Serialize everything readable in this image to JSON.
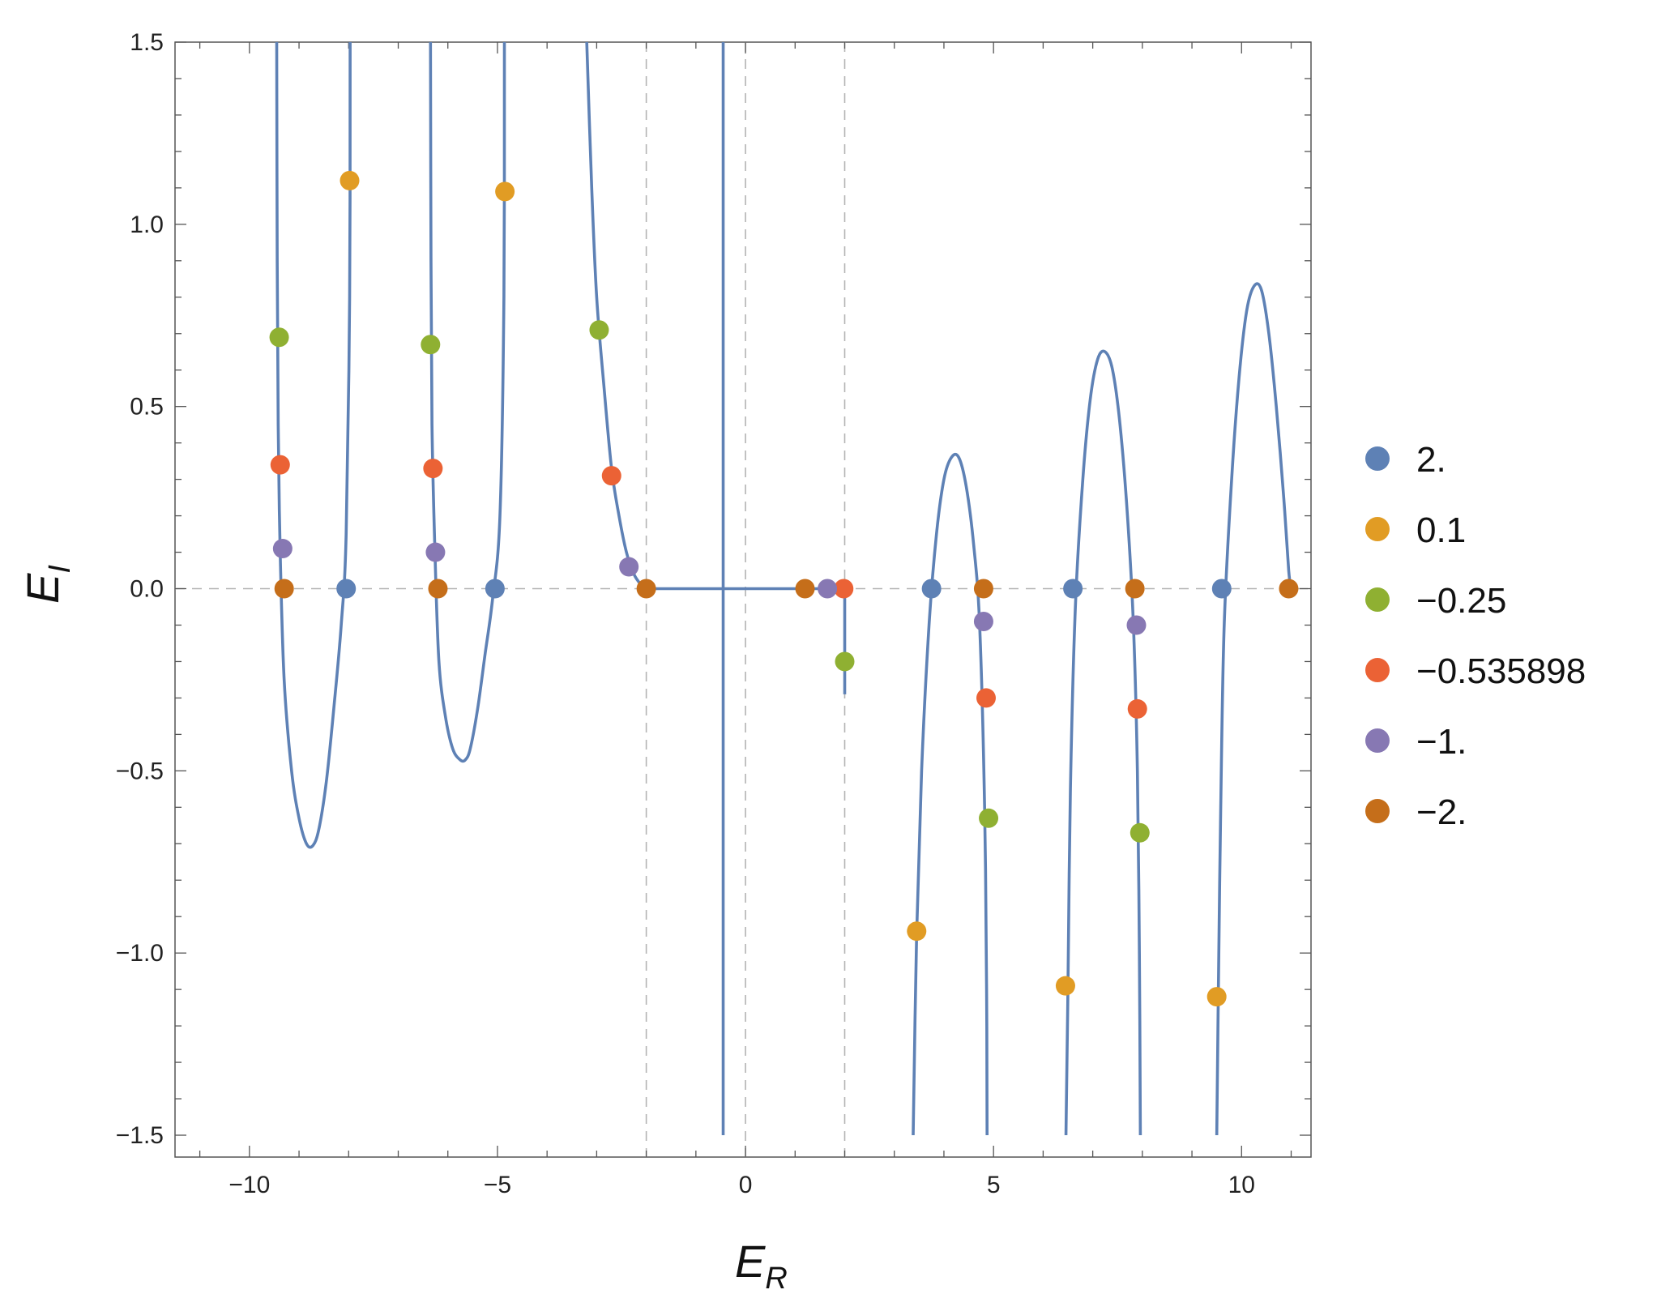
{
  "chart_data": {
    "type": "line",
    "xlabel": {
      "main": "E",
      "sub": "R"
    },
    "ylabel": {
      "main": "E",
      "sub": "I"
    },
    "xlim": [
      -11.5,
      11.4
    ],
    "ylim": [
      -1.56,
      1.5
    ],
    "xticks": [
      {
        "value": -10,
        "label": "−10"
      },
      {
        "value": -5,
        "label": "−5"
      },
      {
        "value": 0,
        "label": "0"
      },
      {
        "value": 5,
        "label": "5"
      },
      {
        "value": 10,
        "label": "10"
      }
    ],
    "yticks": [
      {
        "value": 1.5,
        "label": "1.5"
      },
      {
        "value": 1.0,
        "label": "1.0"
      },
      {
        "value": 0.5,
        "label": "0.5"
      },
      {
        "value": 0.0,
        "label": "0.0"
      },
      {
        "value": -0.5,
        "label": "−0.5"
      },
      {
        "value": -1.0,
        "label": "−1.0"
      },
      {
        "value": -1.5,
        "label": "−1.5"
      }
    ],
    "curve_color": "#5E81B5",
    "reference_lines": {
      "horizontal": [
        0
      ],
      "vertical": [
        -2,
        0,
        2
      ],
      "color": "#b3b3b3"
    },
    "curves": [
      {
        "x": [
          -9.45,
          -9.44,
          -9.42,
          -9.38,
          -9.3,
          -9.15,
          -9.0,
          -8.85,
          -8.72,
          -8.6,
          -8.45,
          -8.3,
          -8.15,
          -8.05,
          -7.98,
          -7.97
        ],
        "y": [
          1.5,
          0.9,
          0.45,
          0.1,
          -0.25,
          -0.5,
          -0.63,
          -0.7,
          -0.705,
          -0.66,
          -0.53,
          -0.33,
          -0.1,
          0.15,
          0.8,
          1.5
        ]
      },
      {
        "x": [
          -6.35,
          -6.34,
          -6.32,
          -6.26,
          -6.18,
          -6.05,
          -5.9,
          -5.75,
          -5.65,
          -5.55,
          -5.4,
          -5.25,
          -5.1,
          -4.95,
          -4.87,
          -4.86
        ],
        "y": [
          1.5,
          0.9,
          0.45,
          0.1,
          -0.2,
          -0.35,
          -0.44,
          -0.47,
          -0.47,
          -0.44,
          -0.33,
          -0.18,
          -0.03,
          0.2,
          0.8,
          1.5
        ]
      },
      {
        "x": [
          -3.2,
          -3.1,
          -3.0,
          -2.85,
          -2.7,
          -2.55,
          -2.4,
          -2.25,
          -2.1,
          -2.0
        ],
        "y": [
          1.5,
          1.1,
          0.8,
          0.55,
          0.33,
          0.2,
          0.1,
          0.04,
          0.01,
          0.0
        ]
      },
      {
        "x": [
          -2.0,
          1.2
        ],
        "y": [
          0.0,
          0.0
        ]
      },
      {
        "x": [
          -0.45,
          -0.45
        ],
        "y": [
          1.5,
          -1.5
        ]
      },
      {
        "x": [
          1.2,
          2.0,
          2.0
        ],
        "y": [
          0.0,
          0.0,
          -0.29
        ]
      },
      {
        "x": [
          3.38,
          3.45,
          3.55,
          3.7,
          3.85,
          4.0,
          4.15,
          4.3,
          4.45,
          4.6,
          4.72,
          4.82,
          4.86,
          4.87
        ],
        "y": [
          -1.5,
          -0.95,
          -0.5,
          -0.1,
          0.15,
          0.3,
          0.36,
          0.36,
          0.28,
          0.12,
          -0.1,
          -0.6,
          -1.1,
          -1.5
        ]
      },
      {
        "x": [
          6.46,
          6.5,
          6.55,
          6.65,
          6.8,
          6.95,
          7.1,
          7.25,
          7.4,
          7.55,
          7.7,
          7.82,
          7.9,
          7.94,
          7.96
        ],
        "y": [
          -1.5,
          -1.1,
          -0.55,
          -0.05,
          0.3,
          0.52,
          0.63,
          0.65,
          0.6,
          0.45,
          0.2,
          -0.1,
          -0.5,
          -1.0,
          -1.5
        ]
      },
      {
        "x": [
          9.5,
          9.53,
          9.58,
          9.65,
          9.8,
          9.95,
          10.1,
          10.25,
          10.4,
          10.55,
          10.7,
          10.85,
          10.95,
          11.0
        ],
        "y": [
          -1.5,
          -1.13,
          -0.6,
          -0.1,
          0.3,
          0.58,
          0.76,
          0.83,
          0.82,
          0.7,
          0.5,
          0.25,
          0.05,
          0.0
        ]
      }
    ],
    "legend_position": "right",
    "series": [
      {
        "name": "2.",
        "color": "#5E81B5",
        "points": [
          [
            -8.05,
            0
          ],
          [
            -5.05,
            0
          ],
          [
            3.75,
            0
          ],
          [
            6.6,
            0
          ],
          [
            9.6,
            0
          ]
        ]
      },
      {
        "name": "0.1",
        "color": "#E19C24",
        "points": [
          [
            -7.98,
            1.12
          ],
          [
            -4.85,
            1.09
          ],
          [
            3.45,
            -0.94
          ],
          [
            6.45,
            -1.09
          ],
          [
            9.5,
            -1.12
          ]
        ]
      },
      {
        "name": "−0.25",
        "color": "#8FB032",
        "points": [
          [
            -9.4,
            0.69
          ],
          [
            -6.35,
            0.67
          ],
          [
            -2.95,
            0.71
          ],
          [
            2.0,
            -0.2
          ],
          [
            4.9,
            -0.63
          ],
          [
            7.95,
            -0.67
          ]
        ]
      },
      {
        "name": "−0.535898",
        "color": "#EB6235",
        "points": [
          [
            -9.38,
            0.34
          ],
          [
            -6.3,
            0.33
          ],
          [
            -2.7,
            0.31
          ],
          [
            1.98,
            0.0
          ],
          [
            4.85,
            -0.3
          ],
          [
            7.9,
            -0.33
          ]
        ]
      },
      {
        "name": "−1.",
        "color": "#8778B3",
        "points": [
          [
            -9.33,
            0.11
          ],
          [
            -6.25,
            0.1
          ],
          [
            -2.35,
            0.06
          ],
          [
            1.65,
            0.0
          ],
          [
            4.8,
            -0.09
          ],
          [
            7.88,
            -0.1
          ]
        ]
      },
      {
        "name": "−2.",
        "color": "#C56E1A",
        "points": [
          [
            -9.3,
            0
          ],
          [
            -6.2,
            0
          ],
          [
            -2.0,
            0
          ],
          [
            1.2,
            0
          ],
          [
            4.8,
            0
          ],
          [
            7.85,
            0
          ],
          [
            10.95,
            0
          ]
        ]
      }
    ]
  }
}
